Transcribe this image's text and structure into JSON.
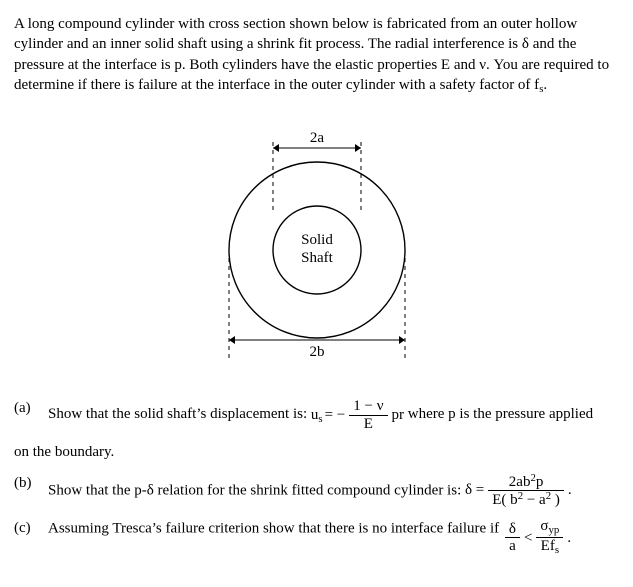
{
  "intro": "A long compound cylinder with cross section shown below is fabricated from an outer hollow cylinder and an inner solid shaft using a shrink fit process. The radial interference is δ and the pressure at the interface is p. Both cylinders have the elastic properties E and ν. You are required to determine if there is failure at the interface in the outer cylinder with a safety factor of f",
  "intro_sub": "s",
  "intro_end": ".",
  "figure": {
    "top_label": "2a",
    "bottom_label": "2b",
    "inner_line1": "Solid",
    "inner_line2": "Shaft",
    "fontsize_pt": 15,
    "outer_radius": 88,
    "inner_radius": 44,
    "stroke": "#000000",
    "dash": "4 4",
    "background": "#ffffff"
  },
  "parts": {
    "a": {
      "label": "(a)",
      "text_before": "Show that the solid shaft’s displacement is:  ",
      "us_left": "u",
      "us_sub": "s",
      "equals": " = −",
      "num": "1 − ν",
      "den": "E",
      "after_frac": " pr ",
      "text_after_inline": "where p is the pressure applied",
      "continue": "on the boundary."
    },
    "b": {
      "label": "(b)",
      "text_before": "Show that the p-δ relation for the shrink fitted compound cylinder is:  ",
      "delta_eq": "δ =",
      "num_html": "2ab<span class='sup'>2</span>p",
      "den_html": "E( b<span class='sup'>2</span> − a<span class='sup'>2</span> )",
      "period": "."
    },
    "c": {
      "label": "(c)",
      "text_before": "Assuming Tresca’s failure criterion show that there is no interface failure if ",
      "lhs_num": "δ",
      "lhs_den": "a",
      "lt": " < ",
      "rhs_num_html": "σ<span class='sub'>yp</span>",
      "rhs_den_html": "Ef<span class='sub'>s</span>",
      "period": "."
    }
  }
}
